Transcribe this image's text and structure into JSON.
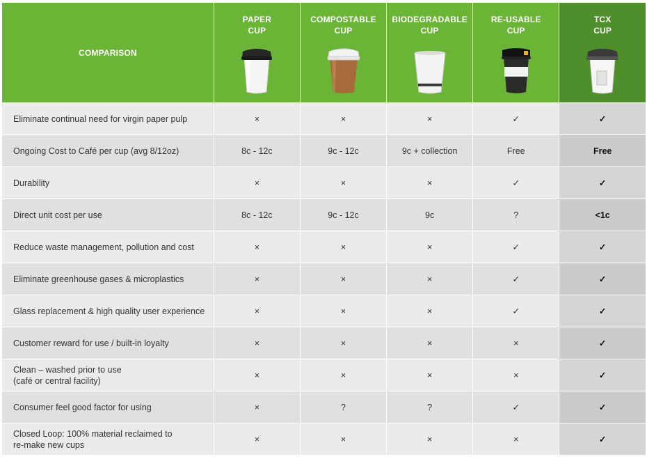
{
  "header": {
    "first_label": "COMPARISON",
    "columns": [
      {
        "line1": "PAPER",
        "line2": "CUP",
        "cup_icon": "paper-cup-icon"
      },
      {
        "line1": "COMPOSTABLE",
        "line2": "CUP",
        "cup_icon": "compostable-cup-icon"
      },
      {
        "line1": "BIODEGRADABLE",
        "line2": "CUP",
        "cup_icon": "biodegradable-cup-icon"
      },
      {
        "line1": "RE-USABLE",
        "line2": "CUP",
        "cup_icon": "reusable-cup-icon"
      },
      {
        "line1": "TCX",
        "line2": "CUP",
        "cup_icon": "tcx-cup-icon"
      }
    ]
  },
  "rows": [
    {
      "label": "Eliminate continual need for virgin paper pulp",
      "cells": [
        "×",
        "×",
        "×",
        "✓",
        "✓"
      ]
    },
    {
      "label": "Ongoing Cost to Café per cup (avg 8/12oz)",
      "cells": [
        "8c - 12c",
        "9c - 12c",
        "9c + collection",
        "Free",
        "Free"
      ]
    },
    {
      "label": "Durability",
      "cells": [
        "×",
        "×",
        "×",
        "✓",
        "✓"
      ]
    },
    {
      "label": "Direct unit cost per use",
      "cells": [
        "8c - 12c",
        "9c - 12c",
        "9c",
        "?",
        "<1c"
      ]
    },
    {
      "label": "Reduce waste management, pollution and cost",
      "cells": [
        "×",
        "×",
        "×",
        "✓",
        "✓"
      ]
    },
    {
      "label": "Eliminate greenhouse gases & microplastics",
      "cells": [
        "×",
        "×",
        "×",
        "✓",
        "✓"
      ]
    },
    {
      "label": "Glass replacement & high quality user experience",
      "cells": [
        "×",
        "×",
        "×",
        "✓",
        "✓"
      ]
    },
    {
      "label": "Customer reward for use / built-in loyalty",
      "cells": [
        "×",
        "×",
        "×",
        "×",
        "✓"
      ]
    },
    {
      "label": "Clean – washed prior to use\n(café or central facility)",
      "cells": [
        "×",
        "×",
        "×",
        "×",
        "✓"
      ]
    },
    {
      "label": "Consumer feel good factor for using",
      "cells": [
        "×",
        "?",
        "?",
        "✓",
        "✓"
      ]
    },
    {
      "label": "Closed Loop: 100% material reclaimed to\nre-make new cups",
      "cells": [
        "×",
        "×",
        "×",
        "×",
        "✓"
      ]
    }
  ],
  "colors": {
    "header_green": "#6bb536",
    "header_dark_green": "#4f8f2b",
    "row_light": "#ebebeb",
    "row_dark": "#e0e0e0"
  }
}
